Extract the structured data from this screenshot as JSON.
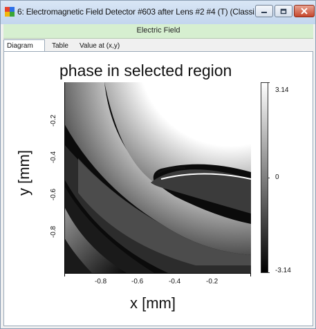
{
  "window": {
    "title": "6: Electromagnetic Field Detector #603 after Lens #2 #4 (T) (Classi...",
    "subtitle": "Electric Field"
  },
  "tabs": [
    {
      "label": "Diagram",
      "active": true
    },
    {
      "label": "Table",
      "active": false
    },
    {
      "label": "Value at (x,y)",
      "active": false
    }
  ],
  "plot": {
    "title": "phase in selected region",
    "x_label": "x [mm]",
    "y_label": "y [mm]",
    "x_ticks": [
      "-0.8",
      "-0.6",
      "-0.4",
      "-0.2"
    ],
    "y_ticks": [
      "-0.2",
      "-0.4",
      "-0.6",
      "-0.8"
    ],
    "colorbar": {
      "max": "3.14",
      "mid": "0",
      "min": "-3.14",
      "max_color": "#ffffff",
      "min_color": "#000000"
    }
  },
  "icons": {
    "app": "app-icon",
    "minimize": "minimize-icon",
    "maximize": "maximize-icon",
    "close": "close-icon"
  }
}
